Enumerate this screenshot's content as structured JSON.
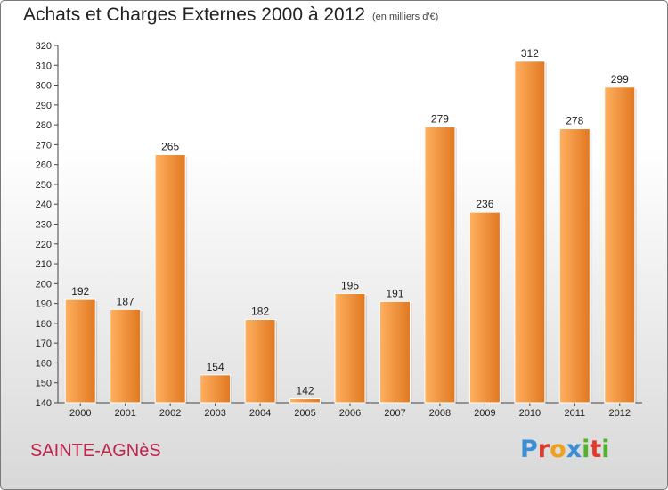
{
  "header": {
    "title": "Achats et Charges Externes 2000 à 2012",
    "subtitle": "(en milliers d'€)"
  },
  "footer": {
    "commune": "SAINTE-AGNèS",
    "logo_letters": [
      {
        "char": "P",
        "color": "#3a8fd6"
      },
      {
        "char": "r",
        "color": "#e03a2f"
      },
      {
        "char": "o",
        "color": "#f0a020"
      },
      {
        "char": "x",
        "color": "#3a8fd6"
      },
      {
        "char": "i",
        "color": "#55b030"
      },
      {
        "char": "t",
        "color": "#e03a2f"
      },
      {
        "char": "i",
        "color": "#55b030"
      }
    ]
  },
  "colors": {
    "bar_light": "#ffb060",
    "bar_dark": "#e07820",
    "bar_edge": "#ffffff"
  },
  "chart_data": {
    "type": "bar",
    "title": "Achats et Charges Externes 2000 à 2012",
    "subtitle": "(en milliers d'€)",
    "categories": [
      "2000",
      "2001",
      "2002",
      "2003",
      "2004",
      "2005",
      "2006",
      "2007",
      "2008",
      "2009",
      "2010",
      "2011",
      "2012"
    ],
    "values": [
      192,
      187,
      265,
      154,
      182,
      142,
      195,
      191,
      279,
      236,
      312,
      278,
      299
    ],
    "ylim": [
      140,
      320
    ],
    "yticks": [
      140,
      150,
      160,
      170,
      180,
      190,
      200,
      210,
      220,
      230,
      240,
      250,
      260,
      270,
      280,
      290,
      300,
      310,
      320
    ],
    "grid": false,
    "xlabel": "",
    "ylabel": ""
  }
}
